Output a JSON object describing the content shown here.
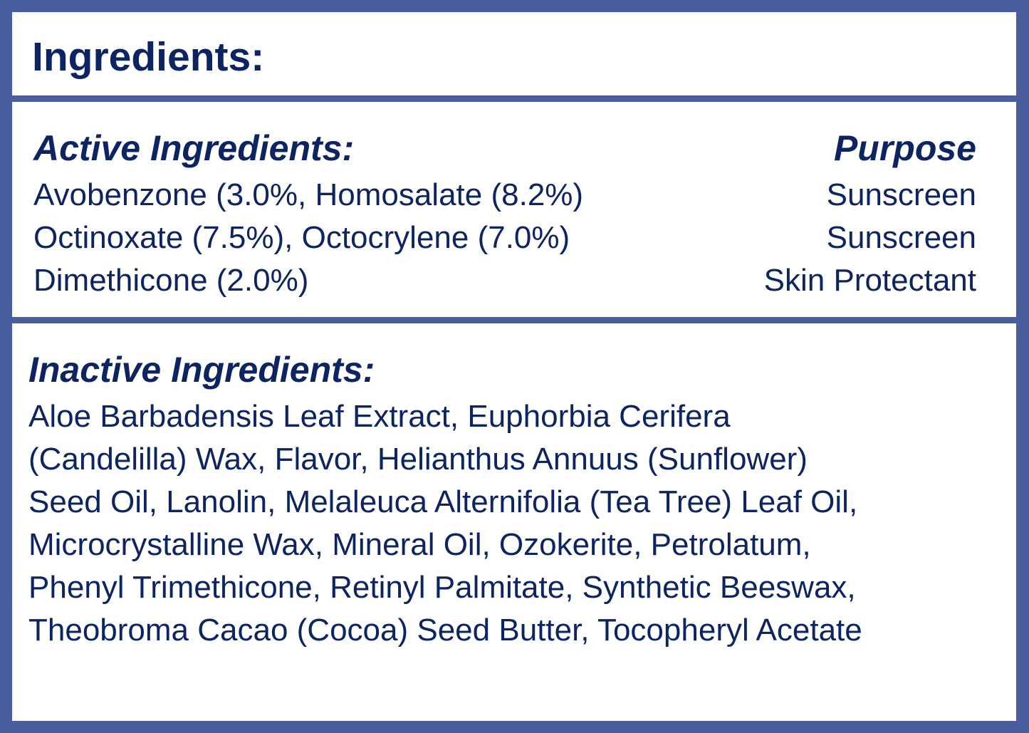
{
  "title": "Ingredients:",
  "active": {
    "heading": "Active Ingredients:",
    "purpose_heading": "Purpose",
    "rows": [
      {
        "ingredients": "Avobenzone (3.0%, Homosalate (8.2%)",
        "purpose": "Sunscreen"
      },
      {
        "ingredients": "Octinoxate (7.5%), Octocrylene (7.0%)",
        "purpose": "Sunscreen"
      },
      {
        "ingredients": "Dimethicone (2.0%)",
        "purpose": "Skin Protectant"
      }
    ]
  },
  "inactive": {
    "heading": "Inactive Ingredients:",
    "lines": [
      "Aloe Barbadensis Leaf Extract, Euphorbia Cerifera",
      "(Candelilla) Wax, Flavor, Helianthus Annuus (Sunflower)",
      "Seed Oil, Lanolin, Melaleuca Alternifolia (Tea Tree) Leaf Oil,",
      "Microcrystalline Wax, Mineral Oil, Ozokerite, Petrolatum,",
      "Phenyl Trimethicone, Retinyl Palmitate, Synthetic Beeswax,",
      "Theobroma Cacao (Cocoa) Seed Butter, Tocopheryl Acetate"
    ]
  },
  "colors": {
    "border": "#4a5e9e",
    "text": "#0d2462"
  }
}
